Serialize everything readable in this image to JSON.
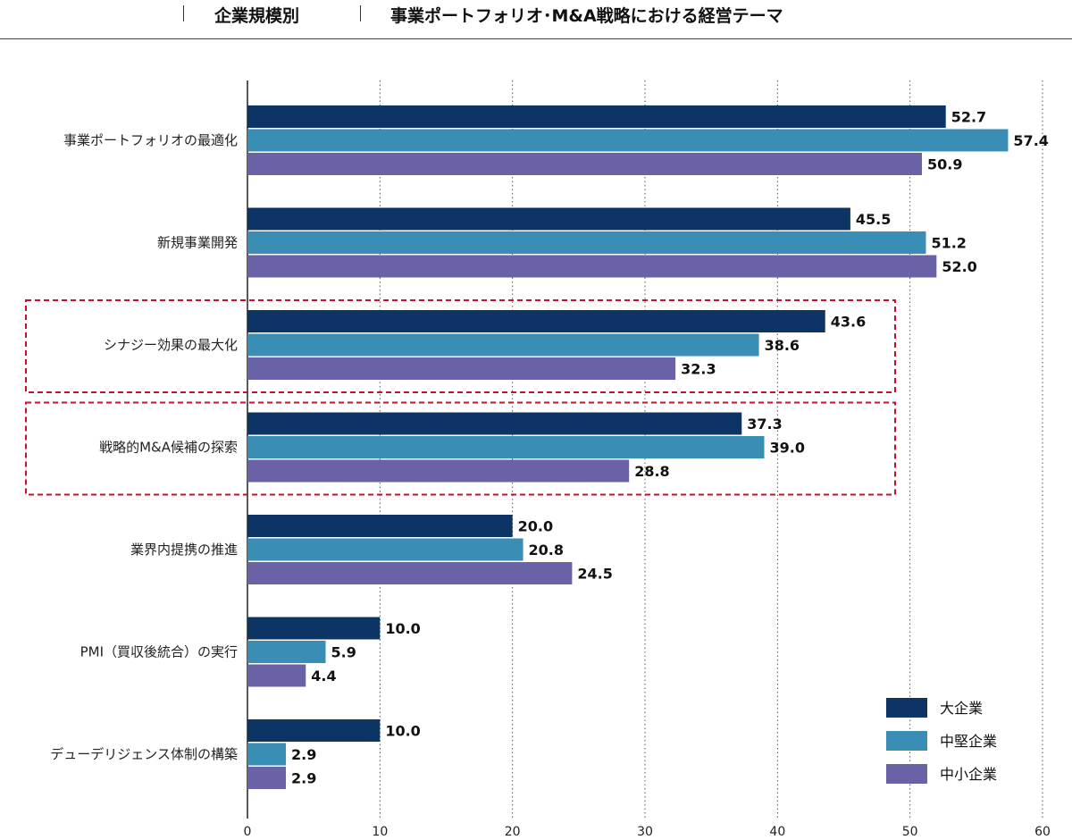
{
  "header": {
    "category": "企業規模別",
    "title": "事業ポートフォリオ･M&A戦略における経営テーマ"
  },
  "chart_data": {
    "type": "bar",
    "orientation": "horizontal",
    "categories": [
      "事業ポートフォリオの最適化",
      "新規事業開発",
      "シナジー効果の最大化",
      "戦略的M&A候補の探索",
      "業界内提携の推進",
      "PMI（買収後統合）の実行",
      "デューデリジェンス体制の構築"
    ],
    "series": [
      {
        "name": "大企業",
        "color": "#0c3566",
        "values": [
          52.7,
          45.5,
          43.6,
          37.3,
          20.0,
          10.0,
          10.0
        ]
      },
      {
        "name": "中堅企業",
        "color": "#3a8db5",
        "values": [
          57.4,
          51.2,
          38.6,
          39.0,
          20.8,
          5.9,
          2.9
        ]
      },
      {
        "name": "中小企業",
        "color": "#6a62a6",
        "values": [
          50.9,
          52.0,
          32.3,
          28.8,
          24.5,
          4.4,
          2.9
        ]
      }
    ],
    "xlim": [
      0,
      60
    ],
    "xticks": [
      0,
      10,
      20,
      30,
      40,
      50,
      60
    ],
    "grid": "vertical-dotted",
    "legend_position": "bottom-right",
    "highlighted_categories": [
      "シナジー効果の最大化",
      "戦略的M&A候補の探索"
    ],
    "highlight_color": "#c8102e"
  }
}
